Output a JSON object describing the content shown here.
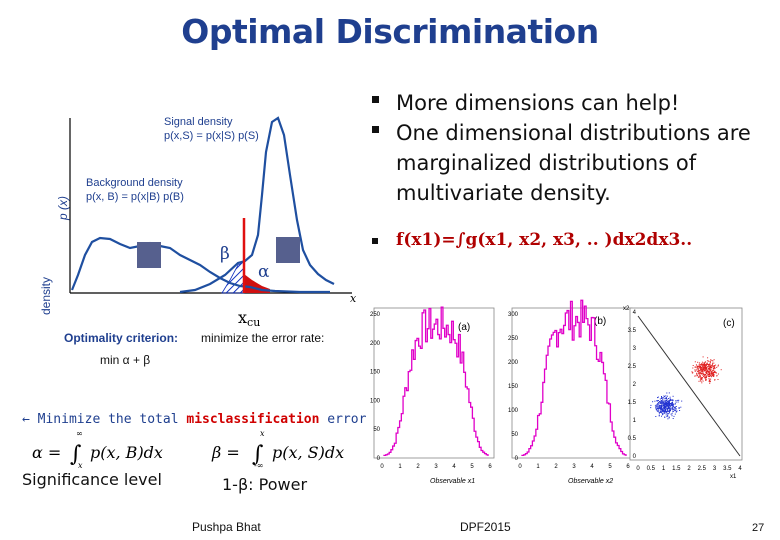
{
  "title": "Optimal Discrimination",
  "bullets": [
    "More dimensions can help!",
    "One dimensional distributions are marginalized distributions of multivariate density."
  ],
  "formula": "f(x1)=∫g(x1, x2, x3, .. )dx2dx3..",
  "left_plot": {
    "y_label": "density",
    "y_label_2": "p (x)",
    "x_label": "x",
    "signal_label_1": "Signal density",
    "signal_label_2": "p(x,S) = p(x|S) p(S)",
    "background_label_1": "Background density",
    "background_label_2": "p(x, B) = p(x|B) p(B)",
    "beta": "β",
    "alpha": "α",
    "xcut": "x",
    "xcut_sub": "cu",
    "criterion_label": "Optimality criterion:",
    "criterion_text": "minimize the error rate:",
    "criterion_expr": "min α + β"
  },
  "minimize_line": {
    "arrow": "←",
    "prefix": "Minimize the total ",
    "highlight": "misclassification",
    "suffix": " error"
  },
  "equations": {
    "alpha_lhs": "α =",
    "alpha_rhs": "p(x, B)dx",
    "alpha_lower": "x",
    "alpha_upper": "∞",
    "beta_lhs": "β =",
    "beta_rhs": "p(x, S)dx",
    "beta_upper": "x",
    "beta_lower": "-∞",
    "significance": "Significance level",
    "power": "1-β: Power"
  },
  "right_panels": {
    "a": {
      "tag": "(a)",
      "xlabel": "Observable x1",
      "yticks": [
        "250",
        "200",
        "150",
        "100",
        "50",
        "0"
      ],
      "xticks": [
        "0",
        "1",
        "2",
        "3",
        "4",
        "5",
        "6"
      ]
    },
    "b": {
      "tag": "(b)",
      "xlabel": "Observable x2",
      "yticks": [
        "300",
        "250",
        "200",
        "150",
        "100",
        "50",
        "0"
      ],
      "xticks": [
        "0",
        "1",
        "2",
        "3",
        "4",
        "5",
        "6"
      ]
    },
    "c": {
      "tag": "(c)",
      "xlabel": "x1",
      "ylabel": "x2",
      "yticks": [
        "4",
        "3.5",
        "3",
        "2.5",
        "2",
        "1.5",
        "1",
        "0.5",
        "0"
      ],
      "xticks": [
        "0",
        "0.5",
        "1",
        "1.5",
        "2",
        "2.5",
        "3",
        "3.5",
        "4"
      ]
    }
  },
  "footer": {
    "author": "Pushpa Bhat",
    "event": "DPF2015",
    "page": "27"
  },
  "colors": {
    "title": "#1f3f8f",
    "formula": "#b00000",
    "histogram": "#e000c8",
    "signal_points": "#e02020",
    "background_points": "#2030d0",
    "criterion": "#1f3f8f"
  }
}
